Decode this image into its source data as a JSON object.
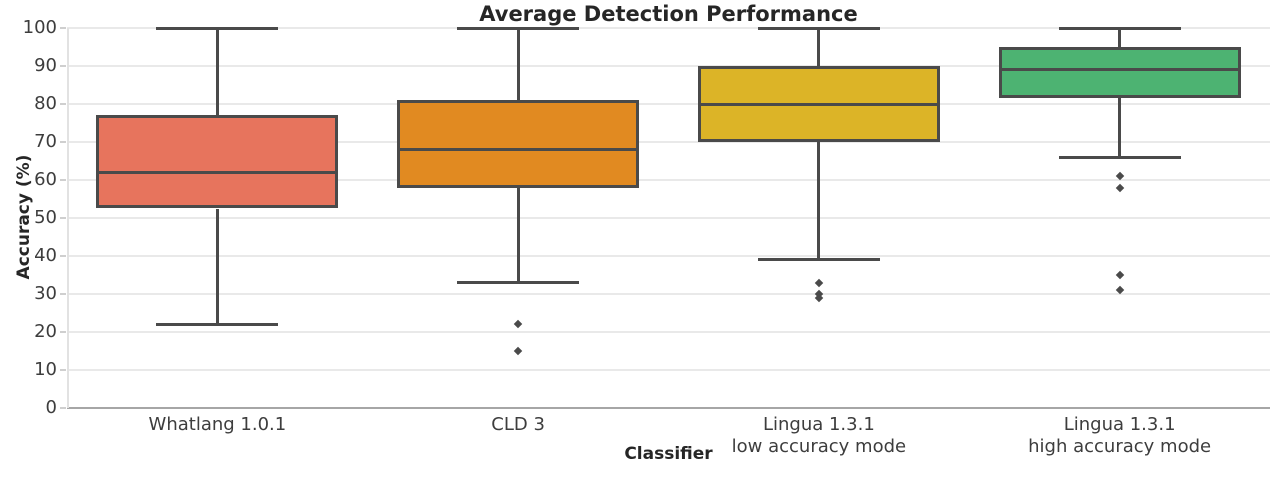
{
  "chart_data": {
    "type": "boxplot",
    "title": "Average Detection Performance",
    "xlabel": "Classifier",
    "ylabel": "Accuracy (%)",
    "ylim": [
      0,
      100
    ],
    "yticks": [
      0,
      10,
      20,
      30,
      40,
      50,
      60,
      70,
      80,
      90,
      100
    ],
    "grid": "horizontal",
    "legend": "none",
    "line_color": "#4a4a4a",
    "categories": [
      "Whatlang 1.0.1",
      "CLD 3",
      "Lingua 1.3.1\nlow accuracy mode",
      "Lingua 1.3.1\nhigh accuracy mode"
    ],
    "series": [
      {
        "name": "Whatlang 1.0.1",
        "slug": "whatlang-1-0-1",
        "color": "#e7745d",
        "whisker_low": 22,
        "q1": 52.5,
        "median": 62,
        "q3": 77,
        "whisker_high": 100,
        "outliers": []
      },
      {
        "name": "CLD 3",
        "slug": "cld-3",
        "color": "#e18a21",
        "whisker_low": 33,
        "q1": 58,
        "median": 68,
        "q3": 81,
        "whisker_high": 100,
        "outliers": [
          22,
          15
        ]
      },
      {
        "name": "Lingua 1.3.1 low accuracy mode",
        "slug": "lingua-1-3-1-low-accuracy",
        "color": "#dcb427",
        "whisker_low": 39,
        "q1": 70,
        "median": 80,
        "q3": 90,
        "whisker_high": 100,
        "outliers": [
          33,
          30,
          29
        ]
      },
      {
        "name": "Lingua 1.3.1 high accuracy mode",
        "slug": "lingua-1-3-1-high-accuracy",
        "color": "#4db372",
        "whisker_low": 66,
        "q1": 81.5,
        "median": 89,
        "q3": 95,
        "whisker_high": 100,
        "outliers": [
          61,
          58,
          35,
          31
        ]
      }
    ]
  }
}
